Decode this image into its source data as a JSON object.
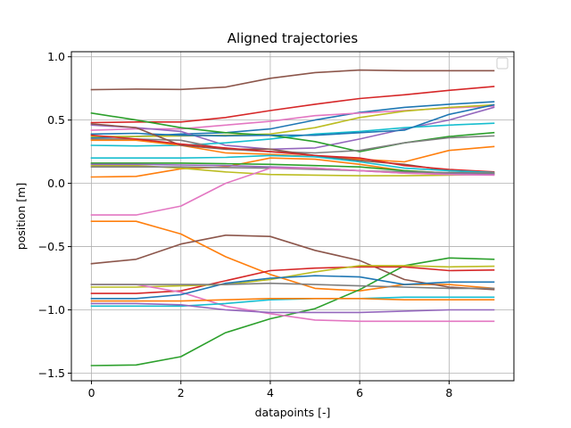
{
  "chart_data": {
    "type": "line",
    "title": "Aligned trajectories",
    "xlabel": "datapoints [-]",
    "ylabel": "position [m]",
    "xlim": [
      -0.45,
      9.45
    ],
    "ylim": [
      -1.56,
      1.04
    ],
    "xticks": [
      0,
      2,
      4,
      6,
      8
    ],
    "yticks": [
      -1.5,
      -1.0,
      -0.5,
      0.0,
      0.5,
      1.0
    ],
    "xtick_labels": [
      "0",
      "2",
      "4",
      "6",
      "8"
    ],
    "ytick_labels": [
      "−1.5",
      "−1.0",
      "−0.5",
      "0.0",
      "0.5",
      "1.0"
    ],
    "grid": true,
    "legend": "top-right (empty)",
    "x": [
      0,
      1,
      2,
      3,
      4,
      5,
      6,
      7,
      8,
      9
    ],
    "series": [
      {
        "color": "#8c564b",
        "values": [
          0.74,
          0.745,
          0.742,
          0.76,
          0.83,
          0.875,
          0.895,
          0.89,
          0.89,
          0.89
        ]
      },
      {
        "color": "#d62728",
        "values": [
          0.48,
          0.485,
          0.485,
          0.52,
          0.575,
          0.625,
          0.67,
          0.7,
          0.735,
          0.765
        ]
      },
      {
        "color": "#1f77b4",
        "values": [
          0.36,
          0.37,
          0.39,
          0.4,
          0.43,
          0.5,
          0.56,
          0.6,
          0.625,
          0.645
        ]
      },
      {
        "color": "#e377c2",
        "values": [
          0.42,
          0.43,
          0.43,
          0.46,
          0.49,
          0.535,
          0.555,
          0.575,
          0.595,
          0.61
        ]
      },
      {
        "color": "#bcbd22",
        "values": [
          0.37,
          0.37,
          0.375,
          0.38,
          0.39,
          0.44,
          0.52,
          0.57,
          0.6,
          0.62
        ]
      },
      {
        "color": "#9467bd",
        "values": [
          0.46,
          0.44,
          0.41,
          0.3,
          0.27,
          0.28,
          0.35,
          0.43,
          0.5,
          0.6
        ]
      },
      {
        "color": "#17becf",
        "values": [
          0.3,
          0.295,
          0.3,
          0.32,
          0.35,
          0.39,
          0.41,
          0.44,
          0.46,
          0.475
        ]
      },
      {
        "color": "#2ca02c",
        "values": [
          0.555,
          0.5,
          0.44,
          0.4,
          0.38,
          0.33,
          0.25,
          0.32,
          0.37,
          0.4
        ]
      },
      {
        "color": "#1f77b4",
        "values": [
          0.39,
          0.395,
          0.38,
          0.375,
          0.38,
          0.38,
          0.4,
          0.42,
          0.545,
          0.62
        ]
      },
      {
        "color": "#7f7f7f",
        "values": [
          0.35,
          0.35,
          0.34,
          0.27,
          0.25,
          0.24,
          0.26,
          0.32,
          0.36,
          0.375
        ]
      },
      {
        "color": "#ff7f0e",
        "values": [
          0.34,
          0.34,
          0.3,
          0.24,
          0.23,
          0.21,
          0.19,
          0.17,
          0.26,
          0.29
        ]
      },
      {
        "color": "#8c564b",
        "values": [
          0.47,
          0.44,
          0.3,
          0.27,
          0.27,
          0.22,
          0.18,
          0.15,
          0.1,
          0.08
        ]
      },
      {
        "color": "#d62728",
        "values": [
          0.38,
          0.35,
          0.31,
          0.28,
          0.25,
          0.22,
          0.2,
          0.14,
          0.11,
          0.09
        ]
      },
      {
        "color": "#17becf",
        "values": [
          0.2,
          0.2,
          0.2,
          0.205,
          0.22,
          0.21,
          0.17,
          0.12,
          0.1,
          0.085
        ]
      },
      {
        "color": "#ff7f0e",
        "values": [
          0.05,
          0.055,
          0.115,
          0.13,
          0.2,
          0.19,
          0.15,
          0.1,
          0.08,
          0.08
        ]
      },
      {
        "color": "#bcbd22",
        "values": [
          0.14,
          0.14,
          0.12,
          0.09,
          0.07,
          0.065,
          0.06,
          0.06,
          0.065,
          0.07
        ]
      },
      {
        "color": "#2ca02c",
        "values": [
          0.16,
          0.16,
          0.16,
          0.155,
          0.15,
          0.14,
          0.13,
          0.1,
          0.08,
          0.075
        ]
      },
      {
        "color": "#9467bd",
        "values": [
          0.15,
          0.15,
          0.145,
          0.14,
          0.13,
          0.12,
          0.1,
          0.08,
          0.075,
          0.07
        ]
      },
      {
        "color": "#7f7f7f",
        "values": [
          0.13,
          0.13,
          0.13,
          0.125,
          0.12,
          0.11,
          0.1,
          0.09,
          0.085,
          0.08
        ]
      },
      {
        "color": "#e377c2",
        "values": [
          -0.25,
          -0.25,
          -0.18,
          0.0,
          0.12,
          0.12,
          0.1,
          0.08,
          0.07,
          0.065
        ]
      },
      {
        "color": "#ff7f0e",
        "values": [
          -0.3,
          -0.3,
          -0.4,
          -0.58,
          -0.72,
          -0.83,
          -0.85,
          -0.8,
          -0.8,
          -0.83
        ]
      },
      {
        "color": "#8c564b",
        "values": [
          -0.635,
          -0.6,
          -0.48,
          -0.41,
          -0.42,
          -0.53,
          -0.61,
          -0.76,
          -0.82,
          -0.84
        ]
      },
      {
        "color": "#2ca02c",
        "values": [
          -1.44,
          -1.435,
          -1.37,
          -1.18,
          -1.07,
          -0.99,
          -0.84,
          -0.65,
          -0.59,
          -0.6
        ]
      },
      {
        "color": "#d62728",
        "values": [
          -0.87,
          -0.87,
          -0.85,
          -0.77,
          -0.69,
          -0.67,
          -0.66,
          -0.66,
          -0.69,
          -0.685
        ]
      },
      {
        "color": "#bcbd22",
        "values": [
          -0.82,
          -0.82,
          -0.81,
          -0.8,
          -0.76,
          -0.7,
          -0.65,
          -0.65,
          -0.66,
          -0.655
        ]
      },
      {
        "color": "#e377c2",
        "values": [
          -0.8,
          -0.8,
          -0.86,
          -0.97,
          -1.03,
          -1.08,
          -1.09,
          -1.09,
          -1.09,
          -1.09
        ]
      },
      {
        "color": "#1f77b4",
        "values": [
          -0.91,
          -0.91,
          -0.88,
          -0.79,
          -0.75,
          -0.73,
          -0.74,
          -0.8,
          -0.78,
          -0.78
        ]
      },
      {
        "color": "#7f7f7f",
        "values": [
          -0.8,
          -0.8,
          -0.8,
          -0.8,
          -0.79,
          -0.8,
          -0.81,
          -0.82,
          -0.83,
          -0.83
        ]
      },
      {
        "color": "#17becf",
        "values": [
          -0.97,
          -0.97,
          -0.97,
          -0.95,
          -0.92,
          -0.91,
          -0.91,
          -0.9,
          -0.9,
          -0.9
        ]
      },
      {
        "color": "#ff7f0e",
        "values": [
          -0.93,
          -0.93,
          -0.93,
          -0.92,
          -0.91,
          -0.91,
          -0.91,
          -0.92,
          -0.92,
          -0.92
        ]
      },
      {
        "color": "#9467bd",
        "values": [
          -0.95,
          -0.95,
          -0.96,
          -1.0,
          -1.02,
          -1.02,
          -1.02,
          -1.01,
          -1.0,
          -1.0
        ]
      }
    ]
  }
}
